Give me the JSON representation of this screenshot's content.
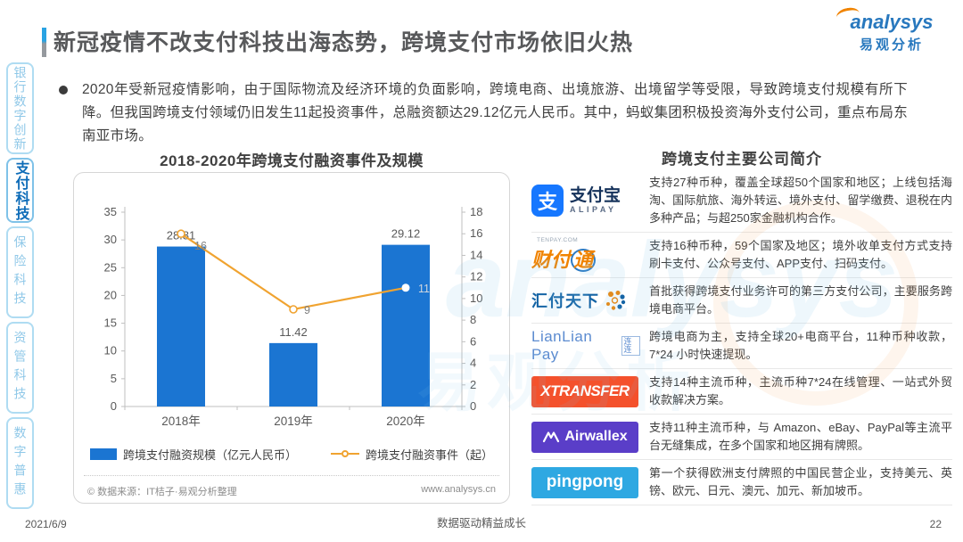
{
  "header": {
    "title": "新冠疫情不改支付科技出海态势，跨境支付市场依旧火热"
  },
  "brand": {
    "name_en": "analysys",
    "name_cn": "易观分析"
  },
  "sidebar": {
    "items": [
      {
        "label": "银行数字创新",
        "active": false
      },
      {
        "label": "支付科技",
        "active": true
      },
      {
        "label": "保险科技",
        "active": false
      },
      {
        "label": "资管科技",
        "active": false
      },
      {
        "label": "数字普惠",
        "active": false
      }
    ]
  },
  "summary": {
    "bullet": "2020年受新冠疫情影响，由于国际物流及经济环境的负面影响，跨境电商、出境旅游、出境留学等受限，导致跨境支付规模有所下降。但我国跨境支付领域仍旧发生11起投资事件，总融资额达29.12亿元人民币。其中，蚂蚁集团积极投资海外支付公司，重点布局东南亚市场。"
  },
  "chart_data": {
    "type": "bar",
    "title": "2018-2020年跨境支付融资事件及规模",
    "categories": [
      "2018年",
      "2019年",
      "2020年"
    ],
    "series": [
      {
        "name": "跨境支付融资规模（亿元人民币）",
        "type": "bar",
        "axis": "left",
        "color": "#1B75D2",
        "values": [
          28.81,
          11.42,
          29.12
        ]
      },
      {
        "name": "跨境支付融资事件（起）",
        "type": "line",
        "axis": "right",
        "color": "#F0A330",
        "values": [
          16,
          9,
          11
        ]
      }
    ],
    "left_axis": {
      "min": 0,
      "max": 35,
      "step": 5
    },
    "right_axis": {
      "min": 0,
      "max": 18,
      "step": 2
    },
    "grid": false,
    "legend_position": "bottom"
  },
  "chart_footer": {
    "source_left": "© 数据来源：IT桔子·易观分析整理",
    "source_right": "www.analysys.cn"
  },
  "companies": {
    "title": "跨境支付主要公司简介",
    "rows": [
      {
        "name": "支付宝",
        "logo": {
          "icon_char": "支",
          "main": "支付宝",
          "sub": "ALIPAY"
        },
        "desc": "支持27种币种，覆盖全球超50个国家和地区；上线包括海淘、国际航旅、海外转运、境外支付、留学缴费、退税在内多种产品；与超250家金融机构合作。"
      },
      {
        "name": "财付通",
        "logo": {
          "pre": "TENPAY.COM",
          "part1": "财付",
          "part2": "通"
        },
        "desc": "支持16种币种，59个国家及地区；境外收单支付方式支持刷卡支付、公众号支付、APP支付、扫码支付。"
      },
      {
        "name": "汇付天下",
        "logo": {
          "main": "汇付天下"
        },
        "desc": "首批获得跨境支付业务许可的第三方支付公司，主要服务跨境电商平台。"
      },
      {
        "name": "连连支付",
        "logo": {
          "main": "LianLian Pay",
          "sub": "连连"
        },
        "desc": "跨境电商为主，支持全球20+电商平台，11种币种收款，7*24 小时快速提现。"
      },
      {
        "name": "XTransfer",
        "logo": {
          "main": "XTRANSFER"
        },
        "desc": "支持14种主流币种，主流币种7*24在线管理、一站式外贸收款解决方案。"
      },
      {
        "name": "Airwallex",
        "logo": {
          "main": "Airwallex"
        },
        "desc": "支持11种主流币种，与 Amazon、eBay、PayPal等主流平台无缝集成，在多个国家和地区拥有牌照。"
      },
      {
        "name": "PingPong",
        "logo": {
          "main": "pingpong"
        },
        "desc": "第一个获得欧洲支付牌照的中国民营企业，支持美元、英镑、欧元、日元、澳元、加元、新加坡币。"
      }
    ]
  },
  "watermark": {
    "text_en": "analysys",
    "text_cn": "易观分析"
  },
  "footer": {
    "date": "2021/6/9",
    "slogan": "数据驱动精益成长",
    "page_number": "22"
  }
}
